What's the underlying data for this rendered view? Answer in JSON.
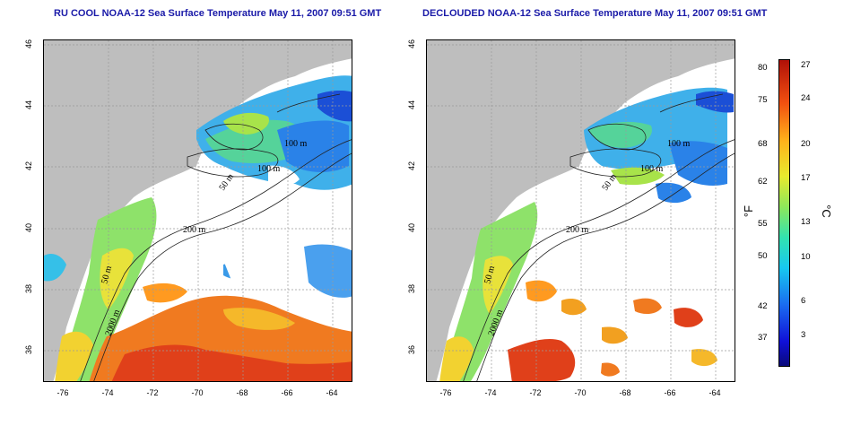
{
  "titles": {
    "left": "RU COOL NOAA-12 Sea Surface Temperature May 11, 2007 09:51 GMT",
    "right": "DECLOUDED NOAA-12 Sea Surface Temperature May 11, 2007 09:51 GMT"
  },
  "axes": {
    "x_ticks": [
      "-76",
      "-74",
      "-72",
      "-70",
      "-68",
      "-66",
      "-64"
    ],
    "y_ticks": [
      "46",
      "44",
      "42",
      "40",
      "38",
      "36"
    ]
  },
  "contour_labels": {
    "left": [
      "100 m",
      "100 m",
      "50 m",
      "200 m",
      "50 m",
      "2000 m"
    ],
    "right": [
      "100 m",
      "100 m",
      "50 m",
      "200 m",
      "50 m",
      "2000 m"
    ]
  },
  "colorbar": {
    "fahrenheit_ticks": [
      "80",
      "75",
      "68",
      "62",
      "55",
      "50",
      "42",
      "37"
    ],
    "celsius_ticks": [
      "27",
      "24",
      "20",
      "17",
      "13",
      "10",
      "6",
      "3"
    ],
    "fahrenheit_unit": "°F",
    "celsius_unit": "°C",
    "colors": {
      "cold": "#0a0a7a",
      "cool": "#17c8f0",
      "mid": "#8ee85a",
      "warm": "#ffb01a",
      "hot": "#b01008"
    }
  },
  "map_colors": {
    "land": "#bebebe",
    "cloud": "#ffffff",
    "grid": "#9a9a9a"
  }
}
